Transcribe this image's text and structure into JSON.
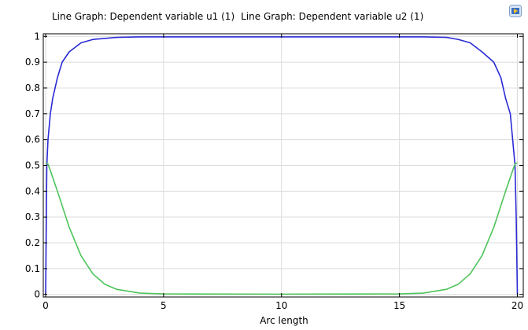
{
  "chart_data": {
    "type": "line",
    "title_parts": [
      "Line Graph: Dependent variable u1 (1)",
      "Line Graph: Dependent variable u2 (1)"
    ],
    "xlabel": "Arc length",
    "ylabel": "",
    "xlim": [
      -0.1,
      20.25
    ],
    "ylim": [
      -0.01,
      1.01
    ],
    "x_ticks": [
      0,
      5,
      10,
      15,
      20
    ],
    "y_ticks": [
      0,
      0.1,
      0.2,
      0.3,
      0.4,
      0.5,
      0.6,
      0.7,
      0.8,
      0.9,
      1
    ],
    "grid": true,
    "series": [
      {
        "color": "#2a2bd4",
        "x": [
          0,
          0.05,
          0.1,
          0.2,
          0.3,
          0.5,
          0.7,
          1,
          1.5,
          2,
          3,
          4,
          5,
          10,
          15,
          16,
          17,
          17.5,
          18,
          18.5,
          19,
          19.3,
          19.5,
          19.7,
          19.8,
          19.9,
          19.95,
          20
        ],
        "y": [
          0,
          0.5,
          0.6,
          0.7,
          0.76,
          0.84,
          0.9,
          0.94,
          0.975,
          0.988,
          0.996,
          0.998,
          0.998,
          0.998,
          0.998,
          0.998,
          0.996,
          0.988,
          0.975,
          0.94,
          0.9,
          0.84,
          0.76,
          0.7,
          0.6,
          0.5,
          0.3,
          0
        ]
      },
      {
        "color": "#4ec45b",
        "x": [
          0,
          0.1,
          0.2,
          0.5,
          1,
          1.5,
          2,
          2.5,
          3,
          4,
          5,
          10,
          15,
          16,
          17,
          17.5,
          18,
          18.5,
          19,
          19.5,
          19.8,
          19.9,
          20
        ],
        "y": [
          0.51,
          0.505,
          0.48,
          0.4,
          0.26,
          0.15,
          0.08,
          0.04,
          0.02,
          0.005,
          0.002,
          0.001,
          0.002,
          0.005,
          0.02,
          0.04,
          0.08,
          0.15,
          0.26,
          0.4,
          0.48,
          0.505,
          0.51
        ]
      }
    ]
  }
}
